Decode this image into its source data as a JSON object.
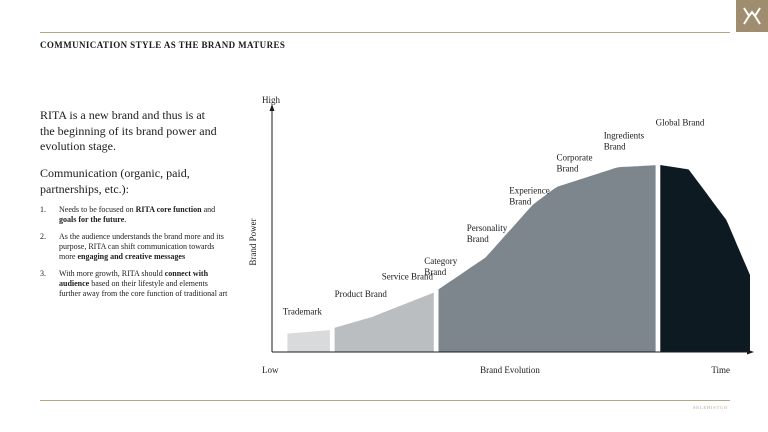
{
  "slide": {
    "title": "COMMUNICATION STYLE AS THE BRAND MATURES",
    "footer_mark": "SELEHISTCO",
    "logo_icon": "monogram-icon",
    "accent_color": "#a08c6e"
  },
  "left": {
    "intro": "RITA is a new brand and thus is at the beginning of its brand power and evolution stage.",
    "communication": "Communication (organic, paid, partnerships, etc.):",
    "steps": [
      {
        "num": "1.",
        "parts": [
          {
            "t": "Needs to be focused on ",
            "b": false
          },
          {
            "t": "RITA core function",
            "b": true
          },
          {
            "t": " and ",
            "b": false
          },
          {
            "t": "goals for the future",
            "b": true
          },
          {
            "t": ".",
            "b": false
          }
        ]
      },
      {
        "num": "2.",
        "parts": [
          {
            "t": "As the audience understands the brand more and its purpose, RITA can shift communication towards more ",
            "b": false
          },
          {
            "t": "engaging and creative messages",
            "b": true
          }
        ]
      },
      {
        "num": "3.",
        "parts": [
          {
            "t": "With more growth, RITA should ",
            "b": false
          },
          {
            "t": "connect with audience",
            "b": true
          },
          {
            "t": " based on their lifestyle and elements further away from the core function of traditional art",
            "b": false
          }
        ]
      }
    ]
  },
  "chart_data": {
    "type": "area",
    "title": "",
    "xlabel": "Brand Evolution",
    "ylabel": "Brand Power",
    "x_start_label": "Low",
    "x_end_label": "Time",
    "y_top_label": "High",
    "curve": [
      {
        "t": 0,
        "p": 0.08
      },
      {
        "t": 0.11,
        "p": 0.1
      },
      {
        "t": 0.12,
        "p": 0.11
      },
      {
        "t": 0.2,
        "p": 0.16
      },
      {
        "t": 0.33,
        "p": 0.27
      },
      {
        "t": 0.44,
        "p": 0.43
      },
      {
        "t": 0.54,
        "p": 0.67
      },
      {
        "t": 0.59,
        "p": 0.75
      },
      {
        "t": 0.72,
        "p": 0.84
      },
      {
        "t": 0.81,
        "p": 0.85
      },
      {
        "t": 0.87,
        "p": 0.83
      },
      {
        "t": 0.95,
        "p": 0.6
      },
      {
        "t": 1,
        "p": 0.35
      }
    ],
    "segments": [
      {
        "name": "stage-1",
        "from": 0.02,
        "to": 0.11,
        "color": "#d9dadb"
      },
      {
        "name": "stage-2",
        "from": 0.12,
        "to": 0.33,
        "color": "#bbbec1"
      },
      {
        "name": "stage-3",
        "from": 0.34,
        "to": 0.8,
        "color": "#7d868d"
      },
      {
        "name": "stage-4",
        "from": 0.81,
        "to": 1.0,
        "color": "#0e1a22"
      }
    ],
    "stages": [
      {
        "label": "Trademark",
        "t": 0.01,
        "p": 0.17
      },
      {
        "label": "Product Brand",
        "t": 0.12,
        "p": 0.25
      },
      {
        "label": "Service Brand",
        "t": 0.22,
        "p": 0.33
      },
      {
        "label": "Category Brand",
        "t": 0.31,
        "p": 0.4
      },
      {
        "label": "Personality Brand",
        "t": 0.4,
        "p": 0.55
      },
      {
        "label": "Experience Brand",
        "t": 0.49,
        "p": 0.72
      },
      {
        "label": "Corporate Brand",
        "t": 0.59,
        "p": 0.87
      },
      {
        "label": "Ingredients Brand",
        "t": 0.69,
        "p": 0.97
      },
      {
        "label": "Global Brand",
        "t": 0.8,
        "p": 1.03
      }
    ]
  }
}
